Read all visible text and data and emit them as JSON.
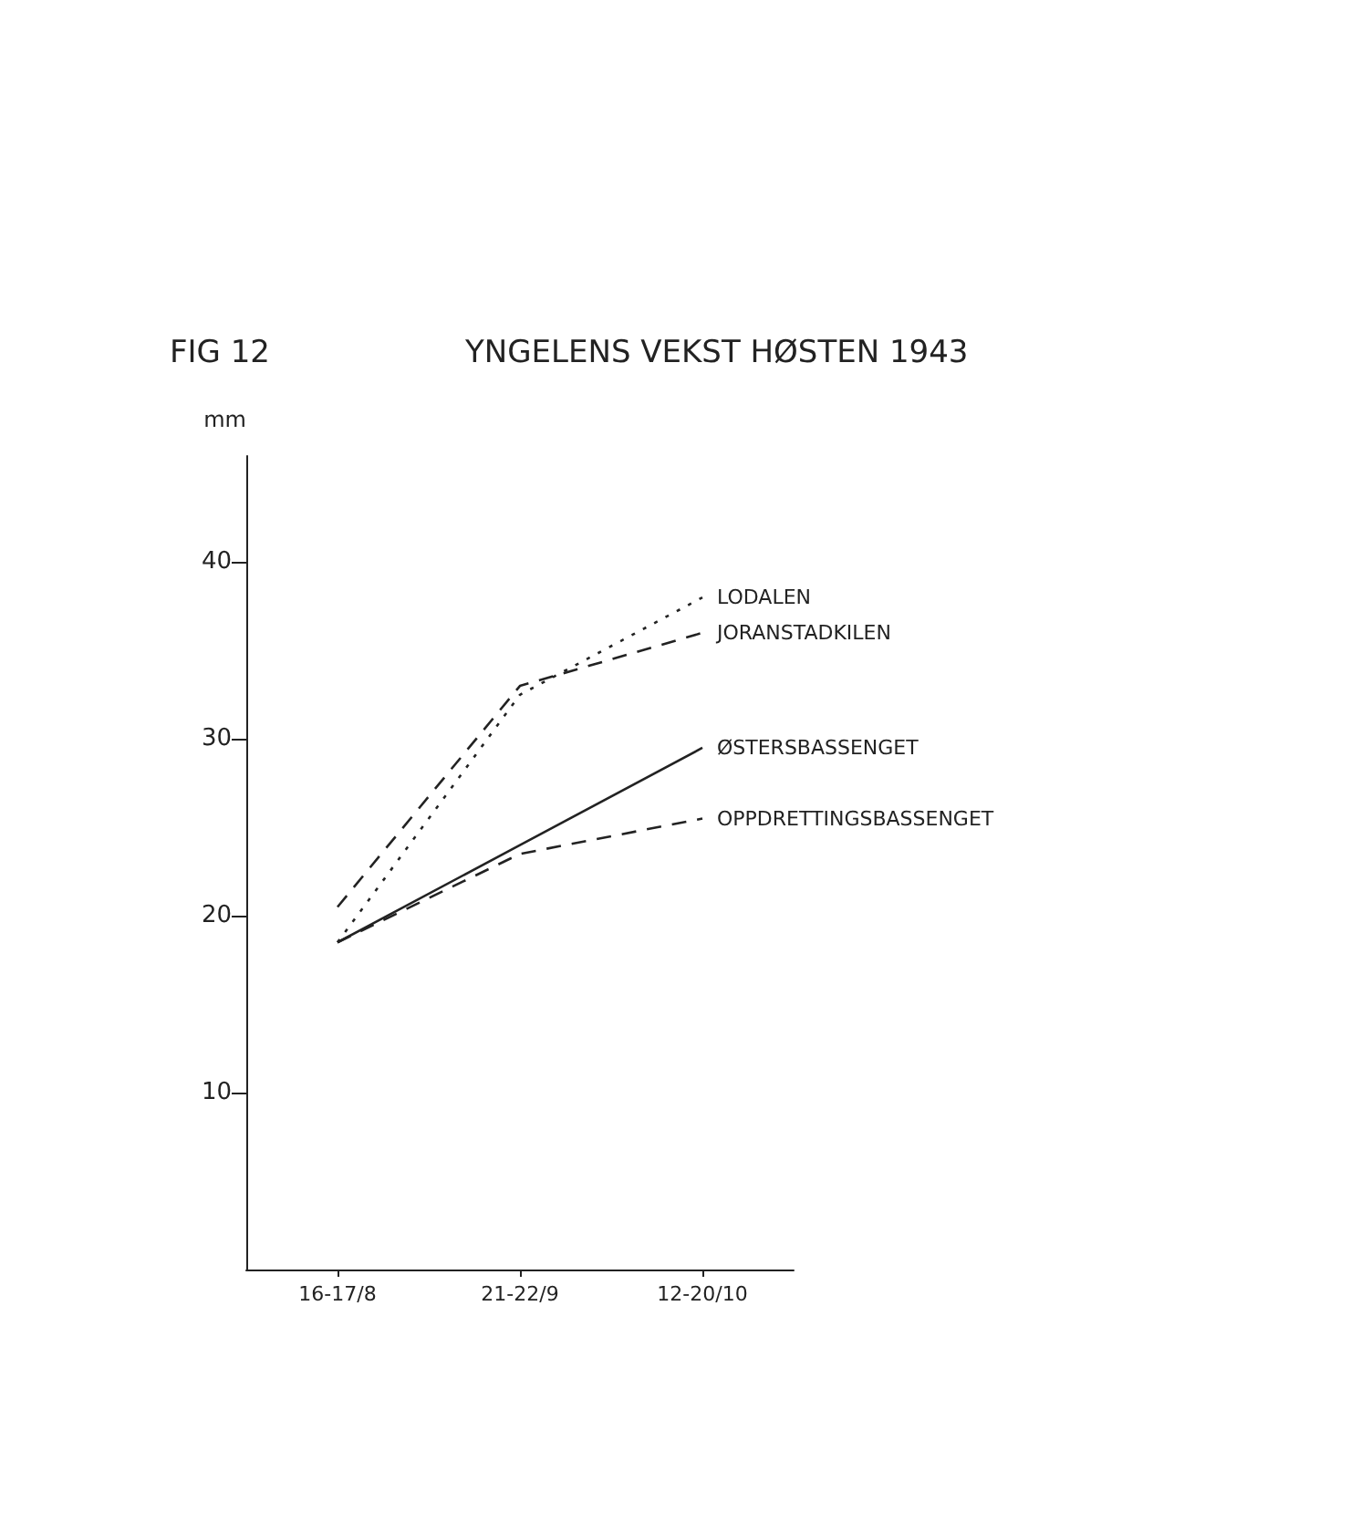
{
  "chart_data": {
    "type": "line",
    "title": "YNGELENS VEKST HØSTEN 1943",
    "annotations": [
      "FIG 12"
    ],
    "ylabel": "mm",
    "categories": [
      "16-17/8",
      "21-22/9",
      "12-20/10"
    ],
    "series": [
      {
        "name": "LODALEN",
        "color": "#222222",
        "line_style": "dotted",
        "values": [
          18.5,
          32.5,
          38
        ]
      },
      {
        "name": "JORANSTADKILEN",
        "color": "#222222",
        "line_style": "dashed",
        "values": [
          20.5,
          33,
          36
        ]
      },
      {
        "name": "ØSTERSBASSENGET",
        "color": "#222222",
        "line_style": "solid",
        "values": [
          18.5,
          24,
          29.5
        ]
      },
      {
        "name": "OPPDRETTINGSBASSENGET",
        "color": "#222222",
        "line_style": "dashed",
        "values": [
          18.5,
          23.5,
          25.5
        ]
      }
    ],
    "ylim": [
      0,
      46
    ],
    "yticks": [
      10,
      20,
      30,
      40
    ],
    "grid": false,
    "legend": false
  }
}
